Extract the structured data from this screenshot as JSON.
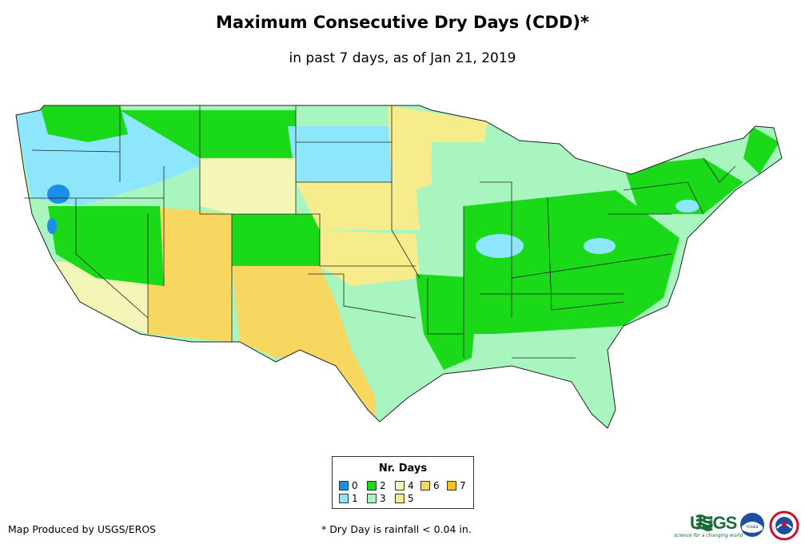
{
  "title": "Maximum Consecutive Dry Days (CDD)*",
  "subtitle": "in past 7 days, as of Jan 21, 2019",
  "legend": {
    "title": "Nr. Days",
    "items": [
      {
        "label": "0",
        "color": "#1a8fe8"
      },
      {
        "label": "1",
        "color": "#8de6fb"
      },
      {
        "label": "2",
        "color": "#19d919"
      },
      {
        "label": "3",
        "color": "#a8f5c0"
      },
      {
        "label": "4",
        "color": "#f4f6b8"
      },
      {
        "label": "5",
        "color": "#f7ec8c"
      },
      {
        "label": "6",
        "color": "#f7d760"
      },
      {
        "label": "7",
        "color": "#f9c21a"
      }
    ]
  },
  "credit": "Map Produced by USGS/EROS",
  "footnote": "* Dry Day is rainfall < 0.04 in.",
  "logos": {
    "usgs": "USGS",
    "usgs_tagline": "science for a changing world",
    "noaa": "noaa"
  }
}
